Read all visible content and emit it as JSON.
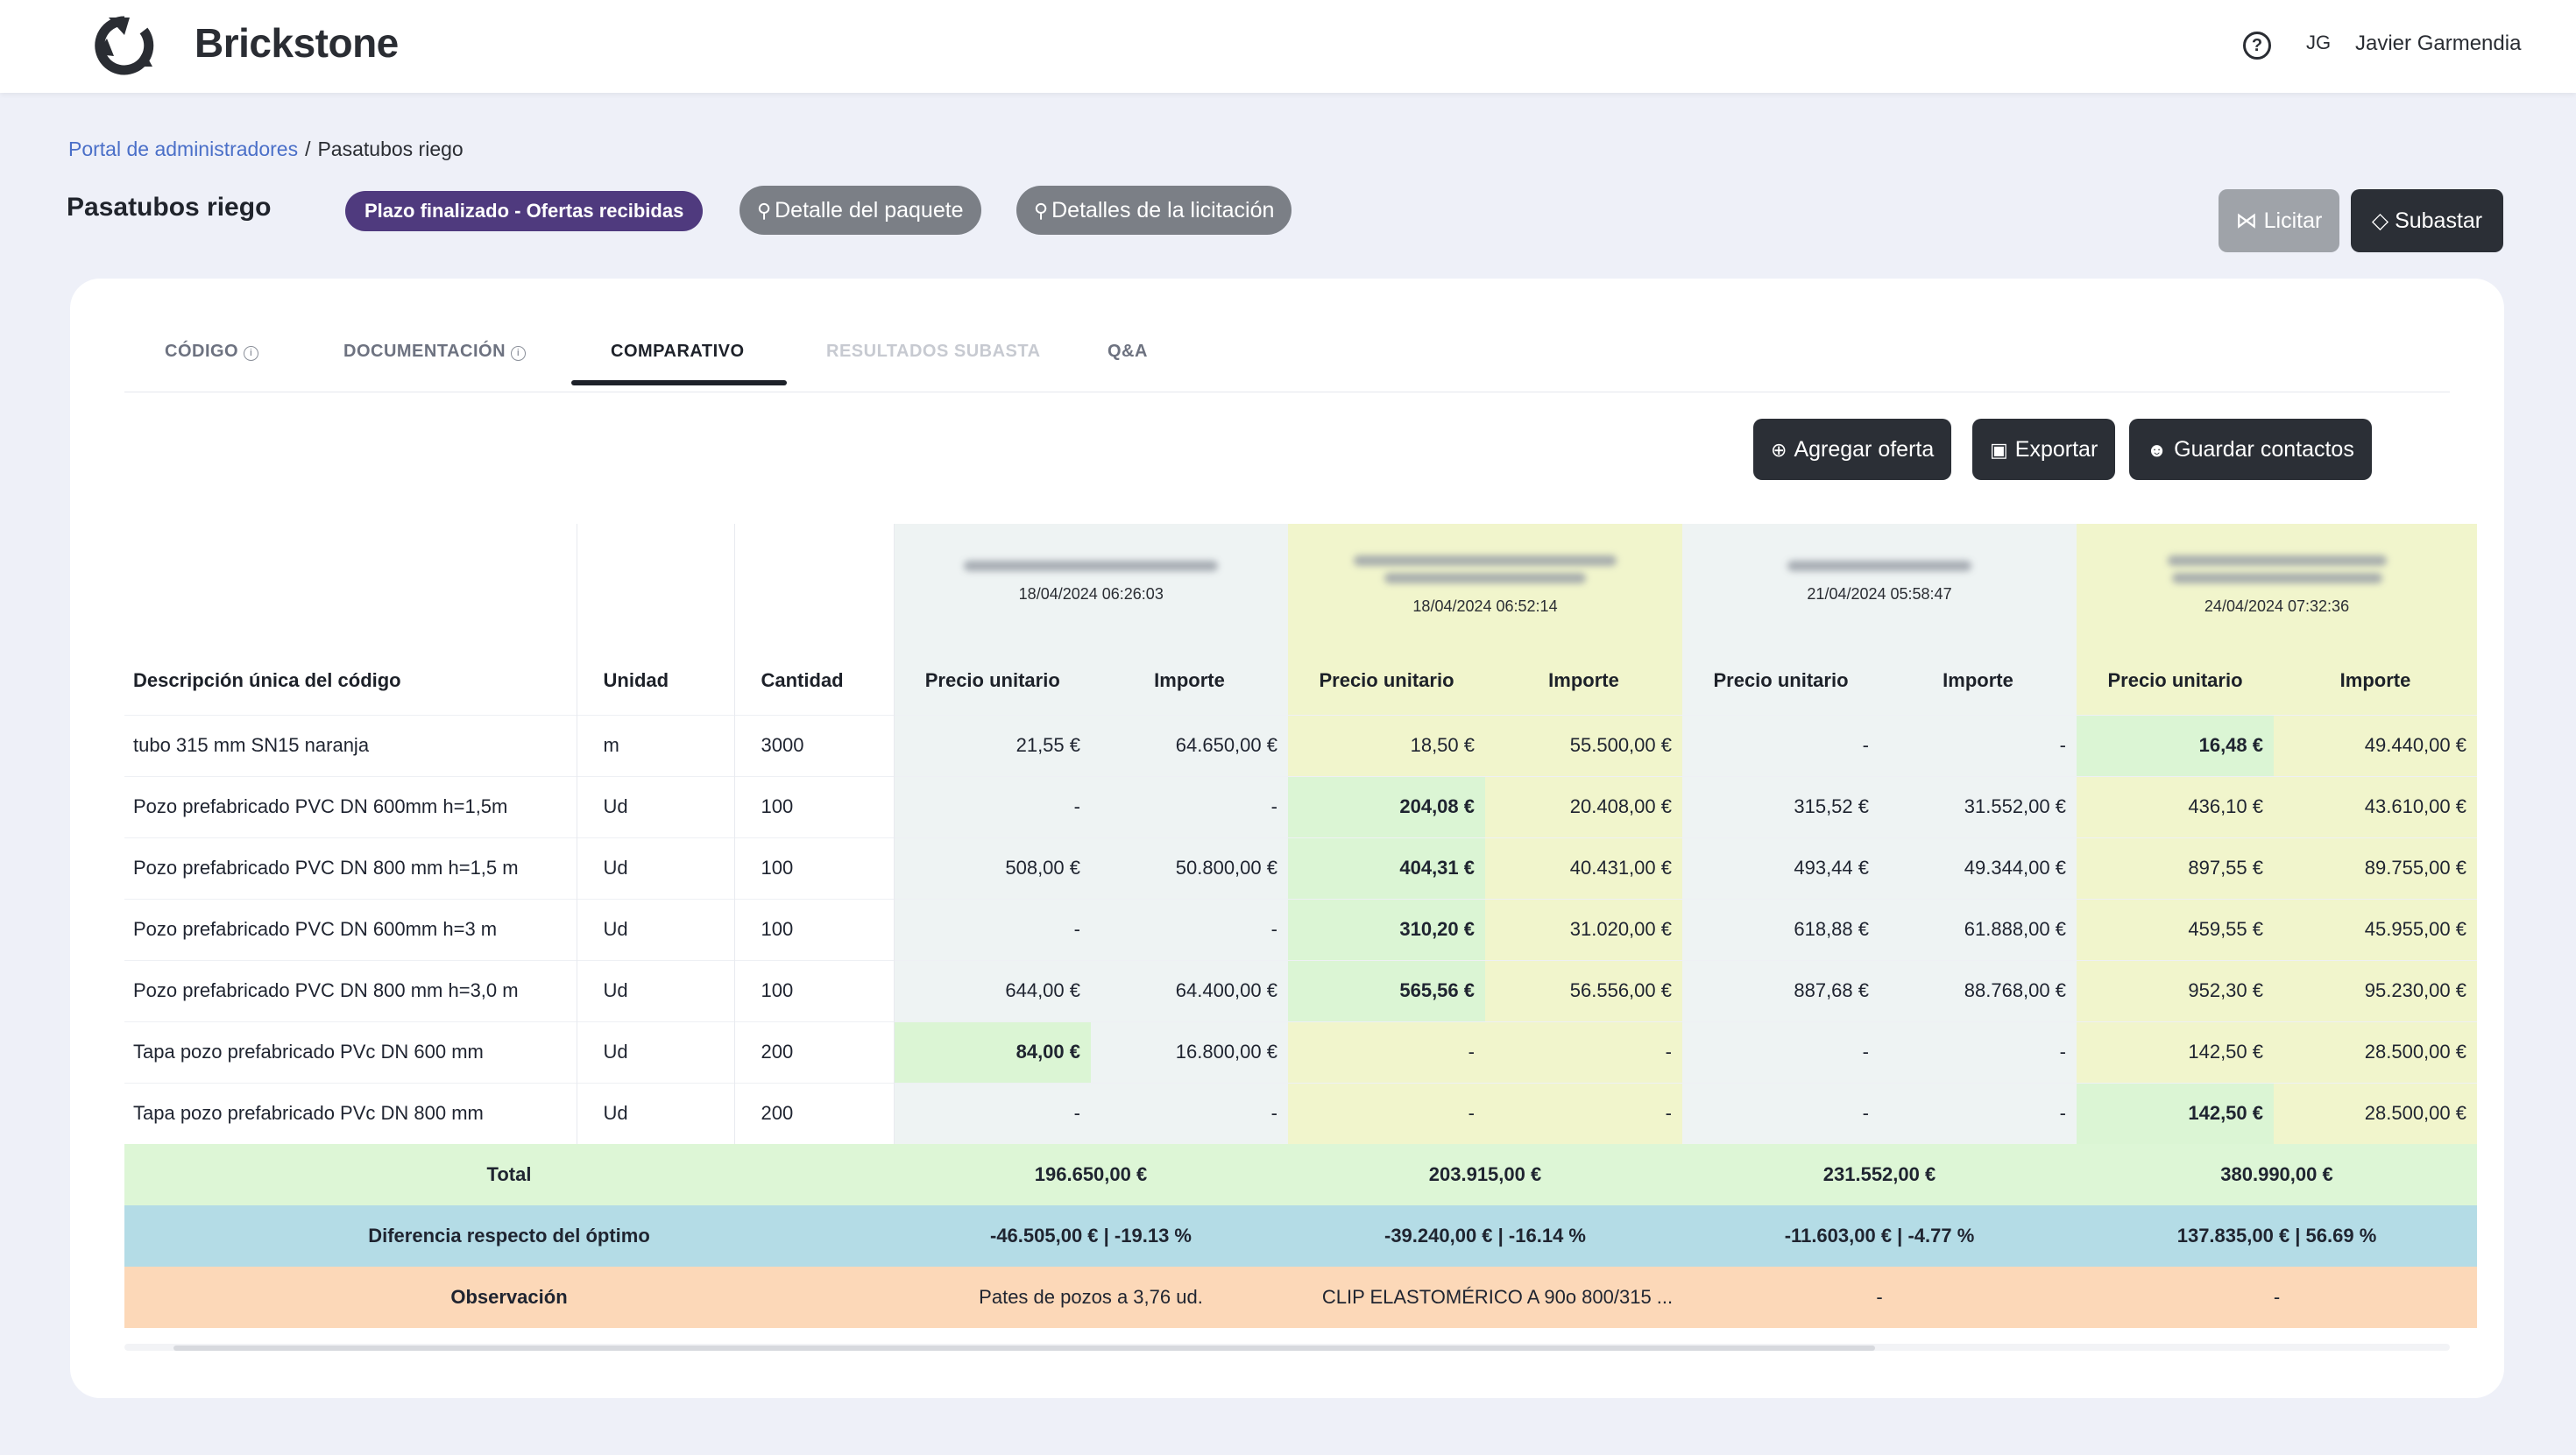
{
  "header": {
    "brand": "Brickstone",
    "user_initials": "JG",
    "user_name": "Javier Garmendia",
    "help_glyph": "?"
  },
  "breadcrumb": {
    "root": "Portal de administradores",
    "separator": "/",
    "current": "Pasatubos riego"
  },
  "page": {
    "title": "Pasatubos riego",
    "status": "Plazo finalizado - Ofertas recibidas",
    "package_detail": "Detalle del paquete",
    "tender_detail": "Detalles de la licitación",
    "licitar": "Licitar",
    "subastar": "Subastar"
  },
  "tabs": [
    {
      "label": "CÓDIGO",
      "info": "i"
    },
    {
      "label": "DOCUMENTACIÓN",
      "info": "i"
    },
    {
      "label": "COMPARATIVO"
    },
    {
      "label": "RESULTADOS SUBASTA"
    },
    {
      "label": "Q&A"
    }
  ],
  "actions": {
    "add_offer": "Agregar oferta",
    "export": "Exportar",
    "save_contacts": "Guardar contactos"
  },
  "table": {
    "headers": {
      "description": "Descripción única del código",
      "unit": "Unidad",
      "quantity": "Cantidad",
      "unit_price": "Precio unitario",
      "amount": "Importe"
    },
    "suppliers": [
      {
        "date": "18/04/2024 06:26:03"
      },
      {
        "date": "18/04/2024 06:52:14"
      },
      {
        "date": "21/04/2024 05:58:47"
      },
      {
        "date": "24/04/2024 07:32:36"
      }
    ],
    "rows": [
      {
        "desc": "tubo 315 mm SN15 naranja",
        "unit": "m",
        "qty": "3000",
        "vals": [
          "21,55 €",
          "64.650,00 €",
          "18,50 €",
          "55.500,00 €",
          "-",
          "-",
          "16,48 €",
          "49.440,00 €"
        ]
      },
      {
        "desc": "Pozo prefabricado PVC DN 600mm h=1,5m",
        "unit": "Ud",
        "qty": "100",
        "vals": [
          "-",
          "-",
          "204,08 €",
          "20.408,00 €",
          "315,52 €",
          "31.552,00 €",
          "436,10 €",
          "43.610,00 €"
        ]
      },
      {
        "desc": "Pozo prefabricado PVC DN 800 mm h=1,5 m",
        "unit": "Ud",
        "qty": "100",
        "vals": [
          "508,00 €",
          "50.800,00 €",
          "404,31 €",
          "40.431,00 €",
          "493,44 €",
          "49.344,00 €",
          "897,55 €",
          "89.755,00 €"
        ]
      },
      {
        "desc": "Pozo prefabricado PVC DN 600mm h=3 m",
        "unit": "Ud",
        "qty": "100",
        "vals": [
          "-",
          "-",
          "310,20 €",
          "31.020,00 €",
          "618,88 €",
          "61.888,00 €",
          "459,55 €",
          "45.955,00 €"
        ]
      },
      {
        "desc": "Pozo prefabricado PVC DN 800 mm h=3,0 m",
        "unit": "Ud",
        "qty": "100",
        "vals": [
          "644,00 €",
          "64.400,00 €",
          "565,56 €",
          "56.556,00 €",
          "887,68 €",
          "88.768,00 €",
          "952,30 €",
          "95.230,00 €"
        ]
      },
      {
        "desc": "Tapa pozo prefabricado PVc DN 600 mm",
        "unit": "Ud",
        "qty": "200",
        "vals": [
          "84,00 €",
          "16.800,00 €",
          "-",
          "-",
          "-",
          "-",
          "142,50 €",
          "28.500,00 €"
        ]
      },
      {
        "desc": "Tapa pozo prefabricado PVc DN 800 mm",
        "unit": "Ud",
        "qty": "200",
        "vals": [
          "-",
          "-",
          "-",
          "-",
          "-",
          "-",
          "142,50 €",
          "28.500,00 €"
        ]
      }
    ],
    "total_label": "Total",
    "totals": [
      "196.650,00 €",
      "203.915,00 €",
      "231.552,00 €",
      "380.990,00 €"
    ],
    "diff_label": "Diferencia respecto del óptimo",
    "diffs": [
      "-46.505,00 € | -19.13 %",
      "-39.240,00 € | -16.14 %",
      "-11.603,00 € | -4.77 %",
      "137.835,00 € | 56.69 %"
    ],
    "obs_label": "Observación",
    "observations": [
      "Pates de pozos a 3,76 ud.",
      "CLIP ELASTOMÉRICO A 90o 800/315 ...",
      "-",
      "-"
    ]
  },
  "colors": {
    "accent_dark": "#2b2f36",
    "status_purple": "#4f3a7e",
    "link_blue": "#4a6fc8",
    "best_green": "#dbf5d4",
    "total_green": "#ddf6d6",
    "diff_blue": "#b4dce6",
    "obs_orange": "#fcd8b8",
    "supplier_grey": "#eef3f3",
    "supplier_yellow": "#f1f5cc"
  },
  "icons": {
    "logo": "brickstone-logo-icon",
    "help": "help-circle-icon",
    "search": "magnify-icon",
    "share": "share-icon",
    "tag": "tag-icon",
    "add": "plus-circle-icon",
    "export": "archive-icon",
    "contacts": "users-icon"
  }
}
